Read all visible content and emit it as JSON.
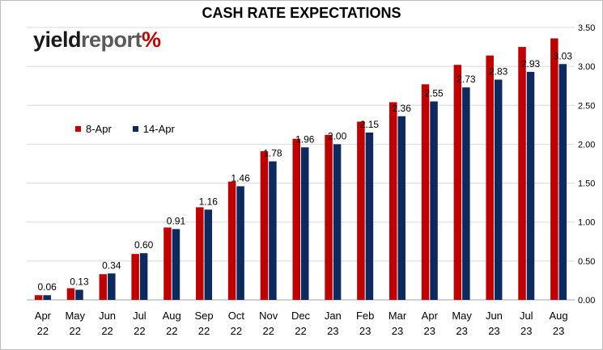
{
  "logo": {
    "part1": "yield",
    "part2": "report",
    "symbol": "%"
  },
  "colors": {
    "series1": "#c00000",
    "series2": "#0c2a5e",
    "grid": "#d9d9d9",
    "axis": "#a6a6a6"
  },
  "chart_data": {
    "type": "bar",
    "title": "CASH RATE EXPECTATIONS",
    "xlabel": "",
    "ylabel": "",
    "y_axis_position": "right",
    "ylim": [
      0,
      3.5
    ],
    "yticks": [
      "0.00",
      "0.50",
      "1.00",
      "1.50",
      "2.00",
      "2.50",
      "3.00",
      "3.50"
    ],
    "grid": true,
    "legend_position": "upper-left",
    "categories": [
      [
        "Apr",
        "22"
      ],
      [
        "May",
        "22"
      ],
      [
        "Jun",
        "22"
      ],
      [
        "Jul",
        "22"
      ],
      [
        "Aug",
        "22"
      ],
      [
        "Sep",
        "22"
      ],
      [
        "Oct",
        "22"
      ],
      [
        "Nov",
        "22"
      ],
      [
        "Dec",
        "22"
      ],
      [
        "Jan",
        "23"
      ],
      [
        "Feb",
        "23"
      ],
      [
        "Mar",
        "23"
      ],
      [
        "Apr",
        "23"
      ],
      [
        "May",
        "23"
      ],
      [
        "Jun",
        "23"
      ],
      [
        "Jul",
        "23"
      ],
      [
        "Aug",
        "23"
      ]
    ],
    "series": [
      {
        "name": "8-Apr",
        "color": "#c00000",
        "values": [
          0.06,
          0.15,
          0.33,
          0.59,
          0.93,
          1.19,
          1.52,
          1.91,
          2.07,
          2.12,
          2.29,
          2.54,
          2.77,
          3.02,
          3.14,
          3.25,
          3.36
        ]
      },
      {
        "name": "14-Apr",
        "color": "#0c2a5e",
        "values": [
          0.06,
          0.13,
          0.34,
          0.6,
          0.91,
          1.16,
          1.46,
          1.78,
          1.96,
          2.0,
          2.15,
          2.36,
          2.55,
          2.73,
          2.83,
          2.93,
          3.03
        ]
      }
    ],
    "data_labels": [
      "0.06",
      "0.13",
      "0.34",
      "0.60",
      "0.91",
      "1.16",
      "1.46",
      "1.78",
      "1.96",
      "2.00",
      "2.15",
      "2.36",
      "2.55",
      "2.73",
      "2.83",
      "2.93",
      "3.03"
    ]
  }
}
